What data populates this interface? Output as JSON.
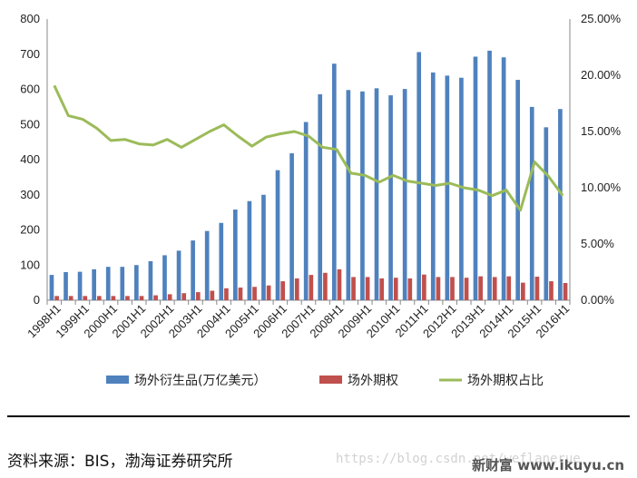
{
  "chart_data": {
    "type": "bar",
    "categories": [
      "1998H1",
      "1998H2",
      "1999H1",
      "1999H2",
      "2000H1",
      "2000H2",
      "2001H1",
      "2001H2",
      "2002H1",
      "2002H2",
      "2003H1",
      "2003H2",
      "2004H1",
      "2004H2",
      "2005H1",
      "2005H2",
      "2006H1",
      "2006H2",
      "2007H1",
      "2007H2",
      "2008H1",
      "2008H2",
      "2009H1",
      "2009H2",
      "2010H1",
      "2010H2",
      "2011H1",
      "2011H2",
      "2012H1",
      "2012H2",
      "2013H1",
      "2013H2",
      "2014H1",
      "2014H2",
      "2015H1",
      "2015H2",
      "2016H1"
    ],
    "tick_labels": [
      "1998H1",
      "1999H1",
      "2000H1",
      "2001H1",
      "2002H1",
      "2003H1",
      "2004H1",
      "2005H1",
      "2006H1",
      "2007H1",
      "2008H1",
      "2009H1",
      "2010H1",
      "2011H1",
      "2012H1",
      "2013H1",
      "2014H1",
      "2015H1",
      "2016H1"
    ],
    "series": [
      {
        "name": "场外衍生品(万亿美元）",
        "axis": "left",
        "kind": "bar",
        "color": "#4F81BD",
        "values": [
          72,
          80,
          81,
          88,
          95,
          95,
          100,
          111,
          128,
          141,
          170,
          197,
          220,
          258,
          282,
          300,
          370,
          418,
          507,
          586,
          673,
          598,
          594,
          603,
          583,
          601,
          706,
          648,
          639,
          633,
          693,
          710,
          691,
          627,
          550,
          492,
          544
        ]
      },
      {
        "name": "场外期权",
        "axis": "left",
        "kind": "bar",
        "color": "#C0504D",
        "values": [
          12,
          12,
          12,
          12,
          12,
          12,
          12,
          14,
          17,
          20,
          23,
          27,
          34,
          36,
          38,
          42,
          54,
          62,
          72,
          78,
          88,
          66,
          66,
          62,
          64,
          62,
          73,
          66,
          66,
          64,
          68,
          66,
          68,
          50,
          67,
          54,
          49
        ]
      },
      {
        "name": "场外期权占比",
        "axis": "right",
        "kind": "line",
        "color": "#9BBB59",
        "values": [
          0.191,
          0.164,
          0.161,
          0.153,
          0.142,
          0.143,
          0.139,
          0.138,
          0.143,
          0.136,
          0.143,
          0.15,
          0.156,
          0.146,
          0.137,
          0.145,
          0.148,
          0.15,
          0.146,
          0.136,
          0.134,
          0.113,
          0.111,
          0.105,
          0.111,
          0.106,
          0.104,
          0.102,
          0.104,
          0.1,
          0.098,
          0.093,
          0.098,
          0.08,
          0.123,
          0.11,
          0.093
        ]
      }
    ],
    "y_left": {
      "ylim": [
        0,
        800
      ],
      "ticks": [
        "0",
        "100",
        "200",
        "300",
        "400",
        "500",
        "600",
        "700",
        "800"
      ]
    },
    "y_right": {
      "ylim": [
        0,
        0.25
      ],
      "ticks": [
        "0.00%",
        "5.00%",
        "10.00%",
        "15.00%",
        "20.00%",
        "25.00%"
      ]
    },
    "grid": false,
    "legend_position": "bottom"
  },
  "footer": {
    "source": "资料来源：BIS，渤海证券研究所",
    "watermark_url": "https://blog.csdn.net/weflanerue",
    "watermark_site": "新财富 www.ikuyu.cn"
  }
}
